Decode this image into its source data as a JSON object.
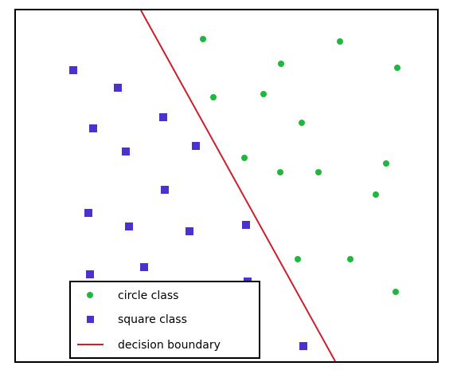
{
  "colors": {
    "circle": "#1fb83f",
    "square": "#4a32cf",
    "boundary": "#cc1f2a",
    "frame": "#000000"
  },
  "legend": {
    "items": [
      {
        "label": "circle class",
        "marker": "circle"
      },
      {
        "label": "square class",
        "marker": "square"
      },
      {
        "label": "decision boundary",
        "marker": "line"
      }
    ]
  }
}
